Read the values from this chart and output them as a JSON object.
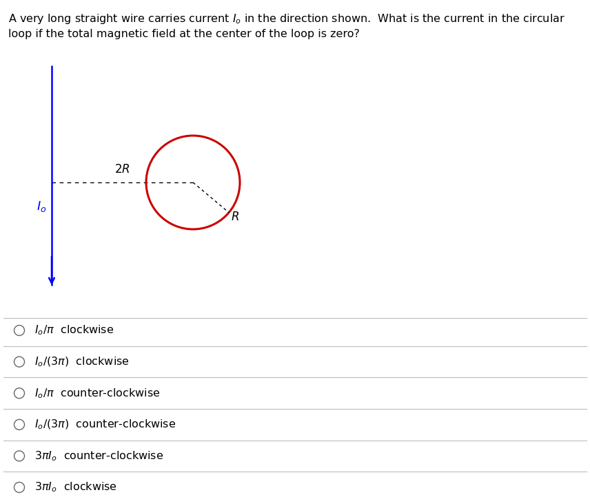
{
  "title_line1": "A very long straight wire carries current $I_o$ in the direction shown.  What is the current in the circular",
  "title_line2": "loop if the total magnetic field at the center of the loop is zero?",
  "wire_color": "#0000FF",
  "circle_color": "#CC0000",
  "dashed_color": "#000000",
  "text_color": "#000000",
  "blue_text_color": "#0000FF",
  "options": [
    "$I_o/\\pi$  clockwise",
    "$I_o/(3\\pi)$  clockwise",
    "$I_o/\\pi$  counter-clockwise",
    "$I_o/(3\\pi)$  counter-clockwise",
    "$3\\pi I_o$  counter-clockwise",
    "$3\\pi I_o$  clockwise"
  ],
  "separator_color": "#BBBBBB",
  "fig_width": 8.56,
  "fig_height": 7.22,
  "background_color": "#FFFFFF"
}
